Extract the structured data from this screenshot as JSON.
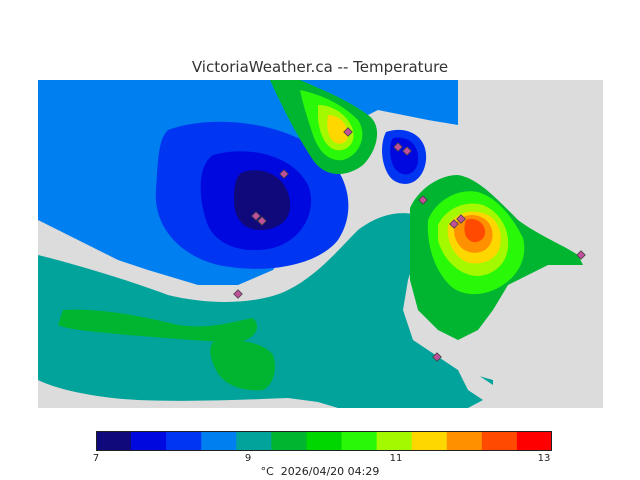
{
  "title": "VictoriaWeather.ca -- Temperature",
  "legend": {
    "unit": "°C",
    "timestamp": "2026/04/20 04:29",
    "tick_labels": [
      "7",
      "9",
      "11",
      "13"
    ],
    "min": 7,
    "max": 13,
    "colors": [
      "#10097b",
      "#0008e0",
      "#0036f2",
      "#0080f0",
      "#02a39a",
      "#01b531",
      "#00d600",
      "#29f808",
      "#a3f900",
      "#ffd700",
      "#ff9100",
      "#ff4a00",
      "#fe0000"
    ]
  },
  "map": {
    "land_color": "#dcdcdc",
    "stations": 12
  }
}
